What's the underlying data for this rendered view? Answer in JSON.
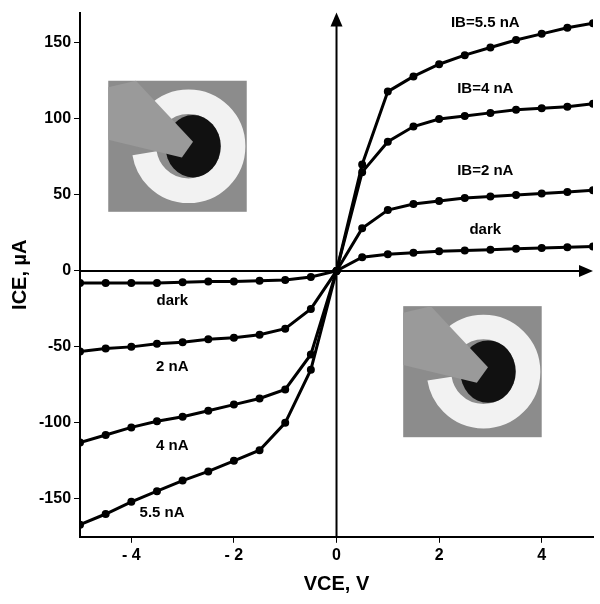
{
  "chart_data": {
    "type": "line",
    "x_label": "VCE, V",
    "y_label": "ICE, µA",
    "x": [
      -5,
      -4.5,
      -4,
      -3.5,
      -3,
      -2.5,
      -2,
      -1.5,
      -1,
      -0.5,
      0,
      0.5,
      1,
      1.5,
      2,
      2.5,
      3,
      3.5,
      4,
      4.5,
      5
    ],
    "series": [
      {
        "name": "dark",
        "color": "#000000",
        "values": [
          -8,
          -8,
          -8,
          -8,
          -7.5,
          -7,
          -7,
          -6.5,
          -6,
          -4,
          0,
          9,
          11,
          12,
          13,
          13.5,
          14,
          14.5,
          15,
          15.5,
          16
        ]
      },
      {
        "name": "2 nA",
        "color": "#000000",
        "values": [
          -53,
          -51,
          -50,
          -48,
          -47,
          -45,
          -44,
          -42,
          -38,
          -25,
          0,
          28,
          40,
          44,
          46,
          48,
          49,
          50,
          51,
          52,
          53
        ]
      },
      {
        "name": "4 nA",
        "color": "#000000",
        "values": [
          -113,
          -108,
          -103,
          -99,
          -96,
          -92,
          -88,
          -84,
          -78,
          -55,
          0,
          65,
          85,
          95,
          100,
          102,
          104,
          106,
          107,
          108,
          110
        ]
      },
      {
        "name": "5.5 nA",
        "color": "#000000",
        "values": [
          -167,
          -160,
          -152,
          -145,
          -138,
          -132,
          -125,
          -118,
          -100,
          -65,
          0,
          70,
          118,
          128,
          136,
          142,
          147,
          152,
          156,
          160,
          163
        ]
      }
    ],
    "annotations": [
      {
        "text": "IB=5.5 nA",
        "x": 2.9,
        "y": 163
      },
      {
        "text": "IB=4 nA",
        "x": 2.9,
        "y": 120
      },
      {
        "text": "IB=2 nA",
        "x": 2.9,
        "y": 66
      },
      {
        "text": "dark",
        "x": 2.9,
        "y": 27
      },
      {
        "text": "dark",
        "x": -3.2,
        "y": -20
      },
      {
        "text": "2 nA",
        "x": -3.2,
        "y": -63
      },
      {
        "text": "4 nA",
        "x": -3.2,
        "y": -115
      },
      {
        "text": "5.5 nA",
        "x": -3.4,
        "y": -159
      }
    ],
    "xlim": [
      -5,
      5
    ],
    "xticks": [
      {
        "value": -4,
        "label": "- 4"
      },
      {
        "value": -2,
        "label": "- 2"
      },
      0,
      2,
      4
    ],
    "ylim": [
      -175,
      170
    ],
    "yticks": [
      -150,
      -100,
      -50,
      0,
      50,
      100,
      150
    ],
    "grid": false,
    "marker": "circle",
    "line_style": "solid"
  }
}
